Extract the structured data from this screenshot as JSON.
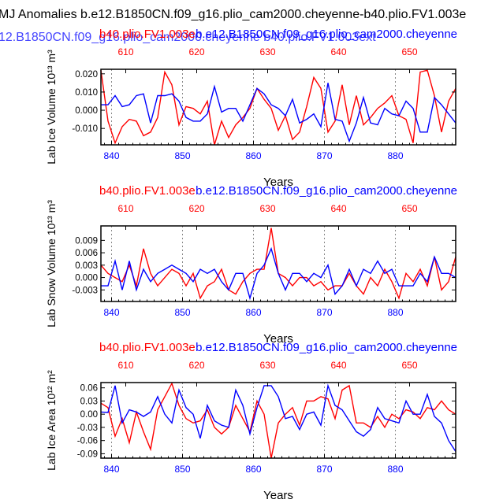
{
  "page": {
    "title": "MJ Anomalies b.e12.B1850CN.f09_g16.plio_cam2000.cheyenne-b40.plio.FV1.003e",
    "subtitle": "12.B1850CN.f09_g16.plio_cam2000.cheyenne    b40.plio.FV1.003ext"
  },
  "colors": {
    "red": "#ff0000",
    "blue": "#0000ff",
    "axis": "#000000",
    "grid": "#888888"
  },
  "chart_data": [
    {
      "type": "line",
      "top_left_label": "b40.plio.FV1.003e",
      "top_right_label": "b.e12.B1850CN.f09_g16.plio_cam2000.cheyenne",
      "xlabel": "Years",
      "ylabel": "Lab Ice Volume 10¹³ m³",
      "xlim": [
        838.5,
        888.5
      ],
      "x_ticks": [
        840,
        850,
        860,
        870,
        880
      ],
      "x_top_ticks": [
        610,
        620,
        630,
        640,
        650
      ],
      "ylim": [
        -0.019,
        0.0225
      ],
      "y_ticks": [
        "0.020",
        "0.010",
        "0.000",
        "-0.010"
      ],
      "y_tick_values": [
        0.02,
        0.01,
        0.0,
        -0.01
      ],
      "grid_x": [
        840,
        850,
        860,
        870,
        880
      ],
      "series": [
        {
          "name": "b40.plio.FV1.003e",
          "color": "red",
          "x": [
            838.5,
            839.5,
            840.5,
            841.5,
            842.5,
            843.5,
            844.5,
            845.5,
            846.5,
            847.5,
            848.5,
            849.5,
            850.5,
            851.5,
            852.5,
            853.5,
            854.5,
            855.5,
            856.5,
            857.5,
            858.5,
            859.5,
            860.5,
            861.5,
            862.5,
            863.5,
            864.5,
            865.5,
            866.5,
            867.5,
            868.5,
            869.5,
            870.5,
            871.5,
            872.5,
            873.5,
            874.5,
            875.5,
            876.5,
            877.5,
            878.5,
            879.5,
            880.5,
            881.5,
            882.5,
            883.5,
            884.5,
            885.5,
            886.5,
            887.5,
            888.5
          ],
          "values": [
            0.022,
            -0.006,
            -0.018,
            -0.009,
            -0.005,
            -0.006,
            -0.014,
            -0.012,
            -0.004,
            0.021,
            0.014,
            -0.008,
            0.002,
            0.001,
            -0.002,
            0.005,
            -0.019,
            -0.006,
            -0.015,
            -0.008,
            -0.004,
            0.001,
            0.012,
            0.006,
            0.001,
            -0.011,
            -0.003,
            -0.016,
            -0.012,
            0.002,
            0.018,
            0.012,
            -0.012,
            -0.006,
            0.014,
            -0.008,
            0.008,
            -0.008,
            -0.004,
            0.001,
            0.004,
            0.008,
            -0.003,
            -0.005,
            -0.018,
            0.021,
            0.022,
            0.008,
            -0.012,
            0.005,
            0.012
          ]
        },
        {
          "name": "b.e12.B1850CN.f09_g16.plio_cam2000.cheyenne",
          "color": "blue",
          "x": [
            838.5,
            839.5,
            840.5,
            841.5,
            842.5,
            843.5,
            844.5,
            845.5,
            846.5,
            847.5,
            848.5,
            849.5,
            850.5,
            851.5,
            852.5,
            853.5,
            854.5,
            855.5,
            856.5,
            857.5,
            858.5,
            859.5,
            860.5,
            861.5,
            862.5,
            863.5,
            864.5,
            865.5,
            866.5,
            867.5,
            868.5,
            869.5,
            870.5,
            871.5,
            872.5,
            873.5,
            874.5,
            875.5,
            876.5,
            877.5,
            878.5,
            879.5,
            880.5,
            881.5,
            882.5,
            883.5,
            884.5,
            885.5,
            886.5,
            887.5,
            888.5
          ],
          "values": [
            0.003,
            0.003,
            0.008,
            0.002,
            0.003,
            0.008,
            0.009,
            -0.007,
            0.008,
            0.008,
            0.009,
            0.005,
            -0.004,
            -0.006,
            -0.006,
            -0.002,
            0.013,
            -0.001,
            0.001,
            0.001,
            -0.006,
            0.003,
            0.012,
            0.009,
            0.003,
            0.001,
            -0.003,
            0.006,
            -0.007,
            -0.005,
            -0.002,
            -0.009,
            0.015,
            -0.005,
            -0.006,
            -0.017,
            -0.007,
            0.007,
            -0.007,
            -0.008,
            0.001,
            -0.002,
            -0.003,
            0.005,
            0.001,
            -0.012,
            -0.012,
            0.007,
            0.003,
            -0.002,
            -0.007
          ]
        }
      ]
    },
    {
      "type": "line",
      "top_left_label": "b40.plio.FV1.003e",
      "top_right_label": "b.e12.B1850CN.f09_g16.plio_cam2000.cheyenne",
      "xlabel": "Years",
      "ylabel": "Lab Snow Volume 10¹³ m³",
      "xlim": [
        838.5,
        888.5
      ],
      "x_ticks": [
        840,
        850,
        860,
        870,
        880
      ],
      "x_top_ticks": [
        610,
        620,
        630,
        640,
        650
      ],
      "ylim": [
        -0.0058,
        0.0125
      ],
      "y_ticks": [
        "0.009",
        "0.006",
        "0.003",
        "0.000",
        "-0.003"
      ],
      "y_tick_values": [
        0.009,
        0.006,
        0.003,
        0.0,
        -0.003
      ],
      "grid_x": [
        840,
        850,
        860,
        870,
        880
      ],
      "series": [
        {
          "name": "b40.plio.FV1.003e",
          "color": "red",
          "x": [
            838.5,
            839.5,
            840.5,
            841.5,
            842.5,
            843.5,
            844.5,
            845.5,
            846.5,
            847.5,
            848.5,
            849.5,
            850.5,
            851.5,
            852.5,
            853.5,
            854.5,
            855.5,
            856.5,
            857.5,
            858.5,
            859.5,
            860.5,
            861.5,
            862.5,
            863.5,
            864.5,
            865.5,
            866.5,
            867.5,
            868.5,
            869.5,
            870.5,
            871.5,
            872.5,
            873.5,
            874.5,
            875.5,
            876.5,
            877.5,
            878.5,
            879.5,
            880.5,
            881.5,
            882.5,
            883.5,
            884.5,
            885.5,
            886.5,
            887.5,
            888.5
          ],
          "values": [
            0.003,
            0.001,
            0.0,
            -0.001,
            0.003,
            -0.002,
            0.007,
            0.001,
            -0.002,
            0.0,
            0.002,
            0.001,
            -0.002,
            0.001,
            -0.005,
            -0.002,
            -0.001,
            0.002,
            -0.003,
            -0.004,
            -0.001,
            0.001,
            0.002,
            0.002,
            0.012,
            0.001,
            0.0,
            -0.002,
            0.0,
            0.0,
            -0.002,
            -0.001,
            -0.003,
            -0.002,
            -0.002,
            0.001,
            -0.002,
            -0.004,
            0.0,
            -0.002,
            0.002,
            -0.001,
            -0.005,
            0.001,
            -0.001,
            0.002,
            -0.002,
            0.005,
            -0.003,
            -0.001,
            0.005
          ]
        },
        {
          "name": "b.e12.B1850CN.f09_g16.plio_cam2000.cheyenne",
          "color": "blue",
          "x": [
            838.5,
            839.5,
            840.5,
            841.5,
            842.5,
            843.5,
            844.5,
            845.5,
            846.5,
            847.5,
            848.5,
            849.5,
            850.5,
            851.5,
            852.5,
            853.5,
            854.5,
            855.5,
            856.5,
            857.5,
            858.5,
            859.5,
            860.5,
            861.5,
            862.5,
            863.5,
            864.5,
            865.5,
            866.5,
            867.5,
            868.5,
            869.5,
            870.5,
            871.5,
            872.5,
            873.5,
            874.5,
            875.5,
            876.5,
            877.5,
            878.5,
            879.5,
            880.5,
            881.5,
            882.5,
            883.5,
            884.5,
            885.5,
            886.5,
            887.5,
            888.5
          ],
          "values": [
            -0.002,
            -0.002,
            0.004,
            -0.003,
            0.004,
            -0.003,
            0.002,
            -0.001,
            0.001,
            0.002,
            0.003,
            0.002,
            0.001,
            -0.001,
            0.002,
            0.001,
            0.002,
            -0.001,
            -0.003,
            0.001,
            0.001,
            -0.005,
            0.001,
            0.003,
            0.007,
            0.001,
            -0.003,
            0.001,
            0.001,
            -0.001,
            0.001,
            0.0,
            0.003,
            -0.004,
            -0.002,
            0.002,
            -0.002,
            0.002,
            0.001,
            0.004,
            0.001,
            0.002,
            -0.002,
            -0.002,
            -0.002,
            0.001,
            -0.001,
            0.005,
            0.001,
            0.001,
            0.0
          ]
        }
      ]
    },
    {
      "type": "line",
      "top_left_label": "b40.plio.FV1.003e",
      "top_right_label": "b.e12.B1850CN.f09_g16.plio_cam2000.cheyenne",
      "xlabel": "Years",
      "ylabel": "Lab Ice Area 10¹² m²",
      "xlim": [
        838.5,
        888.5
      ],
      "x_ticks": [
        840,
        850,
        860,
        870,
        880
      ],
      "x_top_ticks": [
        610,
        620,
        630,
        640,
        650
      ],
      "ylim": [
        -0.1,
        0.072
      ],
      "y_ticks": [
        "0.06",
        "0.03",
        "0.00",
        "-0.03",
        "-0.06",
        "-0.09"
      ],
      "y_tick_values": [
        0.06,
        0.03,
        0.0,
        -0.03,
        -0.06,
        -0.09
      ],
      "grid_x": [
        840,
        850,
        860,
        870,
        880
      ],
      "series": [
        {
          "name": "b40.plio.FV1.003e",
          "color": "red",
          "x": [
            838.5,
            839.5,
            840.5,
            841.5,
            842.5,
            843.5,
            844.5,
            845.5,
            846.5,
            847.5,
            848.5,
            849.5,
            850.5,
            851.5,
            852.5,
            853.5,
            854.5,
            855.5,
            856.5,
            857.5,
            858.5,
            859.5,
            860.5,
            861.5,
            862.5,
            863.5,
            864.5,
            865.5,
            866.5,
            867.5,
            868.5,
            869.5,
            870.5,
            871.5,
            872.5,
            873.5,
            874.5,
            875.5,
            876.5,
            877.5,
            878.5,
            879.5,
            880.5,
            881.5,
            882.5,
            883.5,
            884.5,
            885.5,
            886.5,
            887.5,
            888.5
          ],
          "values": [
            0.025,
            0.015,
            -0.05,
            -0.01,
            -0.065,
            0.005,
            -0.04,
            -0.08,
            0.01,
            0.04,
            0.07,
            0.02,
            -0.01,
            -0.02,
            -0.015,
            0.01,
            -0.03,
            -0.045,
            -0.03,
            0.02,
            -0.01,
            -0.04,
            0.03,
            0.0,
            -0.1,
            -0.02,
            0.0,
            0.015,
            -0.025,
            0.03,
            0.03,
            0.04,
            0.035,
            -0.01,
            0.055,
            0.065,
            -0.02,
            -0.02,
            -0.03,
            -0.005,
            -0.03,
            0.0,
            -0.01,
            0.01,
            0.005,
            -0.01,
            0.015,
            0.01,
            0.03,
            0.01,
            0.0
          ]
        },
        {
          "name": "b.e12.B1850CN.f09_g16.plio_cam2000.cheyenne",
          "color": "blue",
          "x": [
            838.5,
            839.5,
            840.5,
            841.5,
            842.5,
            843.5,
            844.5,
            845.5,
            846.5,
            847.5,
            848.5,
            849.5,
            850.5,
            851.5,
            852.5,
            853.5,
            854.5,
            855.5,
            856.5,
            857.5,
            858.5,
            859.5,
            860.5,
            861.5,
            862.5,
            863.5,
            864.5,
            865.5,
            866.5,
            867.5,
            868.5,
            869.5,
            870.5,
            871.5,
            872.5,
            873.5,
            874.5,
            875.5,
            876.5,
            877.5,
            878.5,
            879.5,
            880.5,
            881.5,
            882.5,
            883.5,
            884.5,
            885.5,
            886.5,
            887.5,
            888.5
          ],
          "values": [
            0.005,
            0.004,
            0.065,
            -0.02,
            0.01,
            0.005,
            -0.005,
            0.005,
            0.04,
            0.0,
            -0.02,
            0.055,
            0.015,
            0.0,
            -0.055,
            0.02,
            -0.015,
            -0.025,
            -0.03,
            0.055,
            0.02,
            -0.045,
            0.015,
            0.065,
            0.065,
            0.04,
            -0.01,
            -0.005,
            -0.035,
            0.0,
            0.005,
            -0.025,
            0.065,
            0.02,
            0.01,
            -0.015,
            -0.04,
            -0.05,
            -0.035,
            0.015,
            -0.01,
            -0.015,
            -0.02,
            0.03,
            0.0,
            0.0,
            0.045,
            -0.005,
            -0.02,
            -0.06,
            -0.085
          ]
        }
      ]
    }
  ]
}
